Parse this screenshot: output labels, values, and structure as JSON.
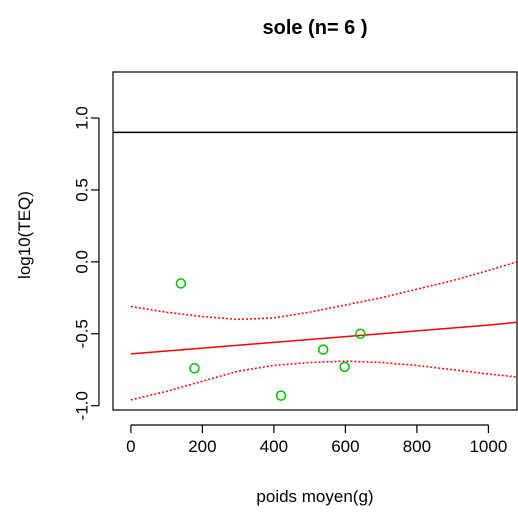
{
  "chart_data": {
    "type": "scatter",
    "title": "sole (n= 6 )",
    "xlabel": "poids moyen(g)",
    "ylabel": "log10(TEQ)",
    "xlim": [
      -50,
      1080
    ],
    "ylim": [
      -1.03,
      1.32
    ],
    "x_ticks": [
      0,
      200,
      400,
      600,
      800,
      1000
    ],
    "x_tick_labels": [
      "0",
      "200",
      "400",
      "600",
      "800",
      "1000"
    ],
    "y_ticks": [
      -1.0,
      -0.5,
      0.0,
      0.5,
      1.0
    ],
    "y_tick_labels": [
      "-1.0",
      "-0.5",
      "0.0",
      "0.5",
      "1.0"
    ],
    "threshold": {
      "y": 0.9,
      "color": "#000000"
    },
    "points": {
      "color": "#00c000",
      "x": [
        140,
        178,
        420,
        538,
        598,
        642
      ],
      "y": [
        -0.15,
        -0.74,
        -0.93,
        -0.61,
        -0.73,
        -0.5
      ]
    },
    "fit": {
      "color": "#ff0000",
      "x": [
        0,
        100,
        200,
        300,
        400,
        500,
        600,
        700,
        800,
        900,
        1000,
        1080
      ],
      "y": [
        -0.64,
        -0.62,
        -0.6,
        -0.58,
        -0.56,
        -0.54,
        -0.52,
        -0.5,
        -0.48,
        -0.46,
        -0.44,
        -0.42
      ]
    },
    "upper_band": {
      "color": "#ff0000",
      "x": [
        0,
        100,
        200,
        300,
        400,
        500,
        600,
        700,
        800,
        900,
        1000,
        1080
      ],
      "y": [
        -0.31,
        -0.35,
        -0.38,
        -0.4,
        -0.39,
        -0.35,
        -0.3,
        -0.25,
        -0.19,
        -0.13,
        -0.06,
        0.0
      ]
    },
    "lower_band": {
      "color": "#ff0000",
      "x": [
        0,
        100,
        200,
        300,
        400,
        500,
        600,
        700,
        800,
        900,
        1000,
        1080
      ],
      "y": [
        -0.96,
        -0.9,
        -0.83,
        -0.76,
        -0.72,
        -0.7,
        -0.69,
        -0.7,
        -0.72,
        -0.75,
        -0.78,
        -0.8
      ]
    }
  }
}
